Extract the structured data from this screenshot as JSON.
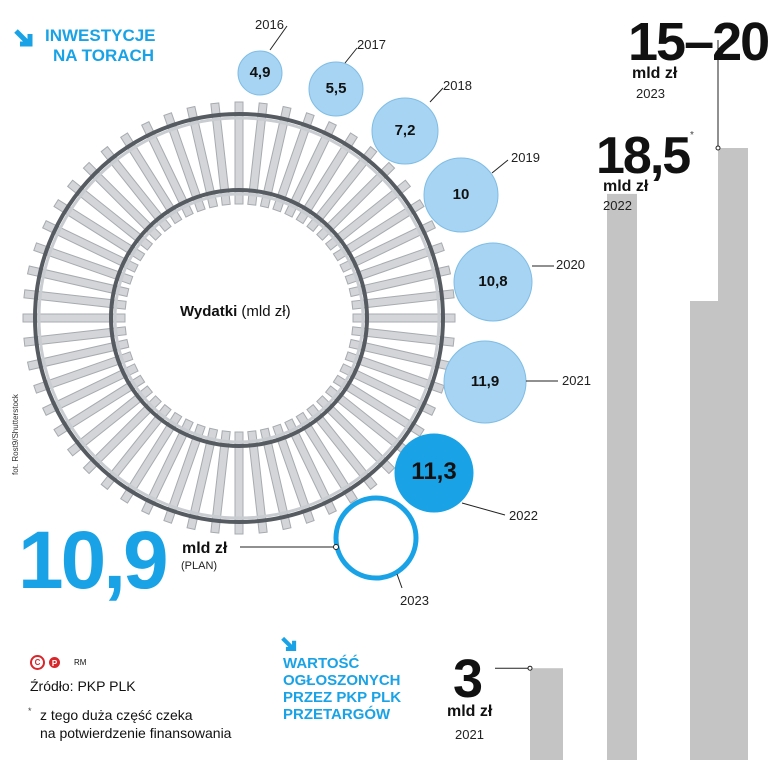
{
  "header": {
    "title_line1": "INWESTYCJE",
    "title_line2": "NA TORACH"
  },
  "ring": {
    "label_bold": "Wydatki",
    "label_rest": " (mld zł)",
    "photo_credit": "fot. Rost9/Shutterstock"
  },
  "spending": [
    {
      "year": "2016",
      "value": "4,9",
      "kind": "actual"
    },
    {
      "year": "2017",
      "value": "5,5",
      "kind": "actual"
    },
    {
      "year": "2018",
      "value": "7,2",
      "kind": "actual"
    },
    {
      "year": "2019",
      "value": "10",
      "kind": "actual"
    },
    {
      "year": "2020",
      "value": "10,8",
      "kind": "actual"
    },
    {
      "year": "2021",
      "value": "11,9",
      "kind": "actual"
    },
    {
      "year": "2022",
      "value": "11,3",
      "kind": "highlight"
    },
    {
      "year": "2023",
      "value": "10,9",
      "kind": "plan"
    }
  ],
  "plan": {
    "value": "10,9",
    "unit": "mld zł",
    "note": "(PLAN)"
  },
  "tenders": {
    "title_lines": [
      "WARTOŚĆ",
      "OGŁOSZONYCH",
      "PRZEZ PKP PLK",
      "PRZETARGÓW"
    ],
    "bars": [
      {
        "year": "2021",
        "label": "3",
        "unit": "mld zł",
        "value": 3,
        "asterisk": ""
      },
      {
        "year": "2022",
        "label": "18,5",
        "unit": "mld zł",
        "value": 18.5,
        "asterisk": "*"
      },
      {
        "year": "2023",
        "label": "15–20",
        "unit": "mld zł",
        "value_low": 15,
        "value_high": 20,
        "asterisk": ""
      }
    ]
  },
  "footer": {
    "logo_text": "RM",
    "source": "Źródło: PKP PLK",
    "footnote_star": "*",
    "footnote_line1": "z tego duża część czeka",
    "footnote_line2": "na potwierdzenie finansowania"
  },
  "colors": {
    "accent": "#19a3e6",
    "bubble_light": "#a6d4f2",
    "bubble_stroke": "#7fbde6",
    "bar_gray": "#c4c4c4",
    "rail_dark": "#555b61"
  },
  "chart_data": [
    {
      "type": "scatter",
      "title": "Wydatki (mld zł)",
      "x": [
        "2016",
        "2017",
        "2018",
        "2019",
        "2020",
        "2021",
        "2022",
        "2023"
      ],
      "values": [
        4.9,
        5.5,
        7.2,
        10,
        10.8,
        11.9,
        11.3,
        10.9
      ],
      "annotations": [
        "2023: PLAN"
      ]
    },
    {
      "type": "bar",
      "title": "WARTOŚĆ OGŁOSZONYCH PRZEZ PKP PLK PRZETARGÓW",
      "categories": [
        "2021",
        "2022",
        "2023"
      ],
      "series": [
        {
          "values": [
            3,
            18.5,
            15
          ]
        },
        {
          "values": [
            null,
            null,
            20
          ]
        }
      ],
      "ylabel": "mld zł"
    }
  ]
}
